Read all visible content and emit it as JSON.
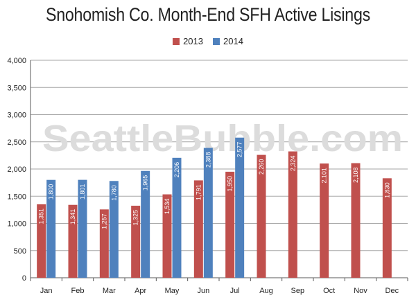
{
  "chart_data": {
    "type": "bar",
    "title": "Snohomish Co. Month-End SFH Active Lisings",
    "categories": [
      "Jan",
      "Feb",
      "Mar",
      "Apr",
      "May",
      "Jun",
      "Jul",
      "Aug",
      "Sep",
      "Oct",
      "Nov",
      "Dec"
    ],
    "series": [
      {
        "name": "2013",
        "color": "#c0504d",
        "values": [
          1351,
          1341,
          1257,
          1325,
          1534,
          1791,
          1950,
          2260,
          2324,
          2101,
          2108,
          1830
        ]
      },
      {
        "name": "2014",
        "color": "#4f81bd",
        "values": [
          1800,
          1801,
          1780,
          1965,
          2206,
          2388,
          2577,
          null,
          null,
          null,
          null,
          null
        ]
      }
    ],
    "data_labels": {
      "2013": [
        "1,351",
        "1,341",
        "1,257",
        "1,325",
        "1,534",
        "1,791",
        "1,950",
        "2,260",
        "2,324",
        "2,101",
        "2,108",
        "1,830"
      ],
      "2014": [
        "1,800",
        "1,801",
        "1,780",
        "1,965",
        "2,206",
        "2,388",
        "2,577",
        null,
        null,
        null,
        null,
        null
      ]
    },
    "ylim": [
      0,
      4000
    ],
    "yticks": [
      0,
      500,
      1000,
      1500,
      2000,
      2500,
      3000,
      3500,
      4000
    ],
    "ytick_labels": [
      "0",
      "500",
      "1,000",
      "1,500",
      "2,000",
      "2,500",
      "3,000",
      "3,500",
      "4,000"
    ],
    "xlabel": "",
    "ylabel": "",
    "grid": true,
    "legend_position": "top-center",
    "watermark": "SeattleBubble.com"
  }
}
